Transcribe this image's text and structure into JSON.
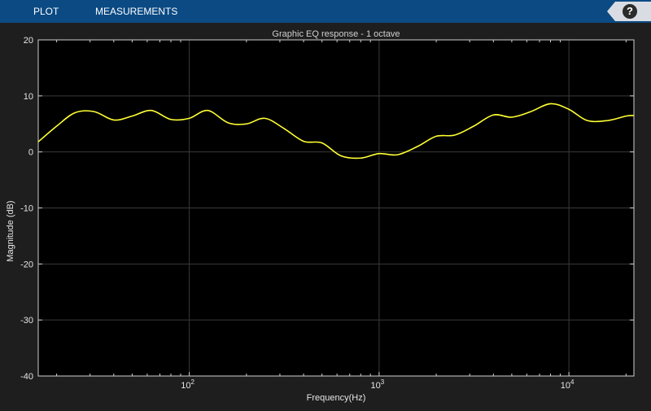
{
  "toolstrip": {
    "tabs": [
      {
        "label": "PLOT"
      },
      {
        "label": "MEASUREMENTS"
      }
    ],
    "help_icon": "help-icon",
    "help_label": "?"
  },
  "chart_data": {
    "type": "line",
    "title": "Graphic EQ response - 1 octave",
    "xlabel": "Frequency(Hz)",
    "ylabel": "Magnitude (dB)",
    "xscale": "log",
    "xlim": [
      16,
      22000
    ],
    "ylim": [
      -40,
      20
    ],
    "yticks": [
      20,
      10,
      0,
      -10,
      -20,
      -30,
      -40
    ],
    "xticks": [
      {
        "value": 100,
        "base": "10",
        "exp": "2"
      },
      {
        "value": 1000,
        "base": "10",
        "exp": "3"
      },
      {
        "value": 10000,
        "base": "10",
        "exp": "4"
      }
    ],
    "grid": true,
    "colors": {
      "background": "#000000",
      "line": "#ffff33",
      "grid": "#3a3a3a",
      "axis": "#d0d0d0"
    },
    "series": [
      {
        "x": [
          16,
          20,
          25,
          31.5,
          40,
          50,
          63,
          80,
          100,
          125,
          160,
          200,
          250,
          315,
          400,
          500,
          630,
          800,
          1000,
          1250,
          1600,
          2000,
          2500,
          3150,
          4000,
          5000,
          6300,
          8000,
          10000,
          12500,
          16000,
          20000,
          22000
        ],
        "y": [
          1.8,
          4.6,
          7.0,
          7.2,
          5.7,
          6.4,
          7.4,
          5.8,
          6.0,
          7.4,
          5.2,
          5.0,
          6.0,
          4.2,
          1.9,
          1.6,
          -0.7,
          -1.1,
          -0.3,
          -0.5,
          1.0,
          2.8,
          3.0,
          4.6,
          6.6,
          6.2,
          7.2,
          8.6,
          7.6,
          5.6,
          5.6,
          6.4,
          6.5
        ]
      }
    ]
  }
}
